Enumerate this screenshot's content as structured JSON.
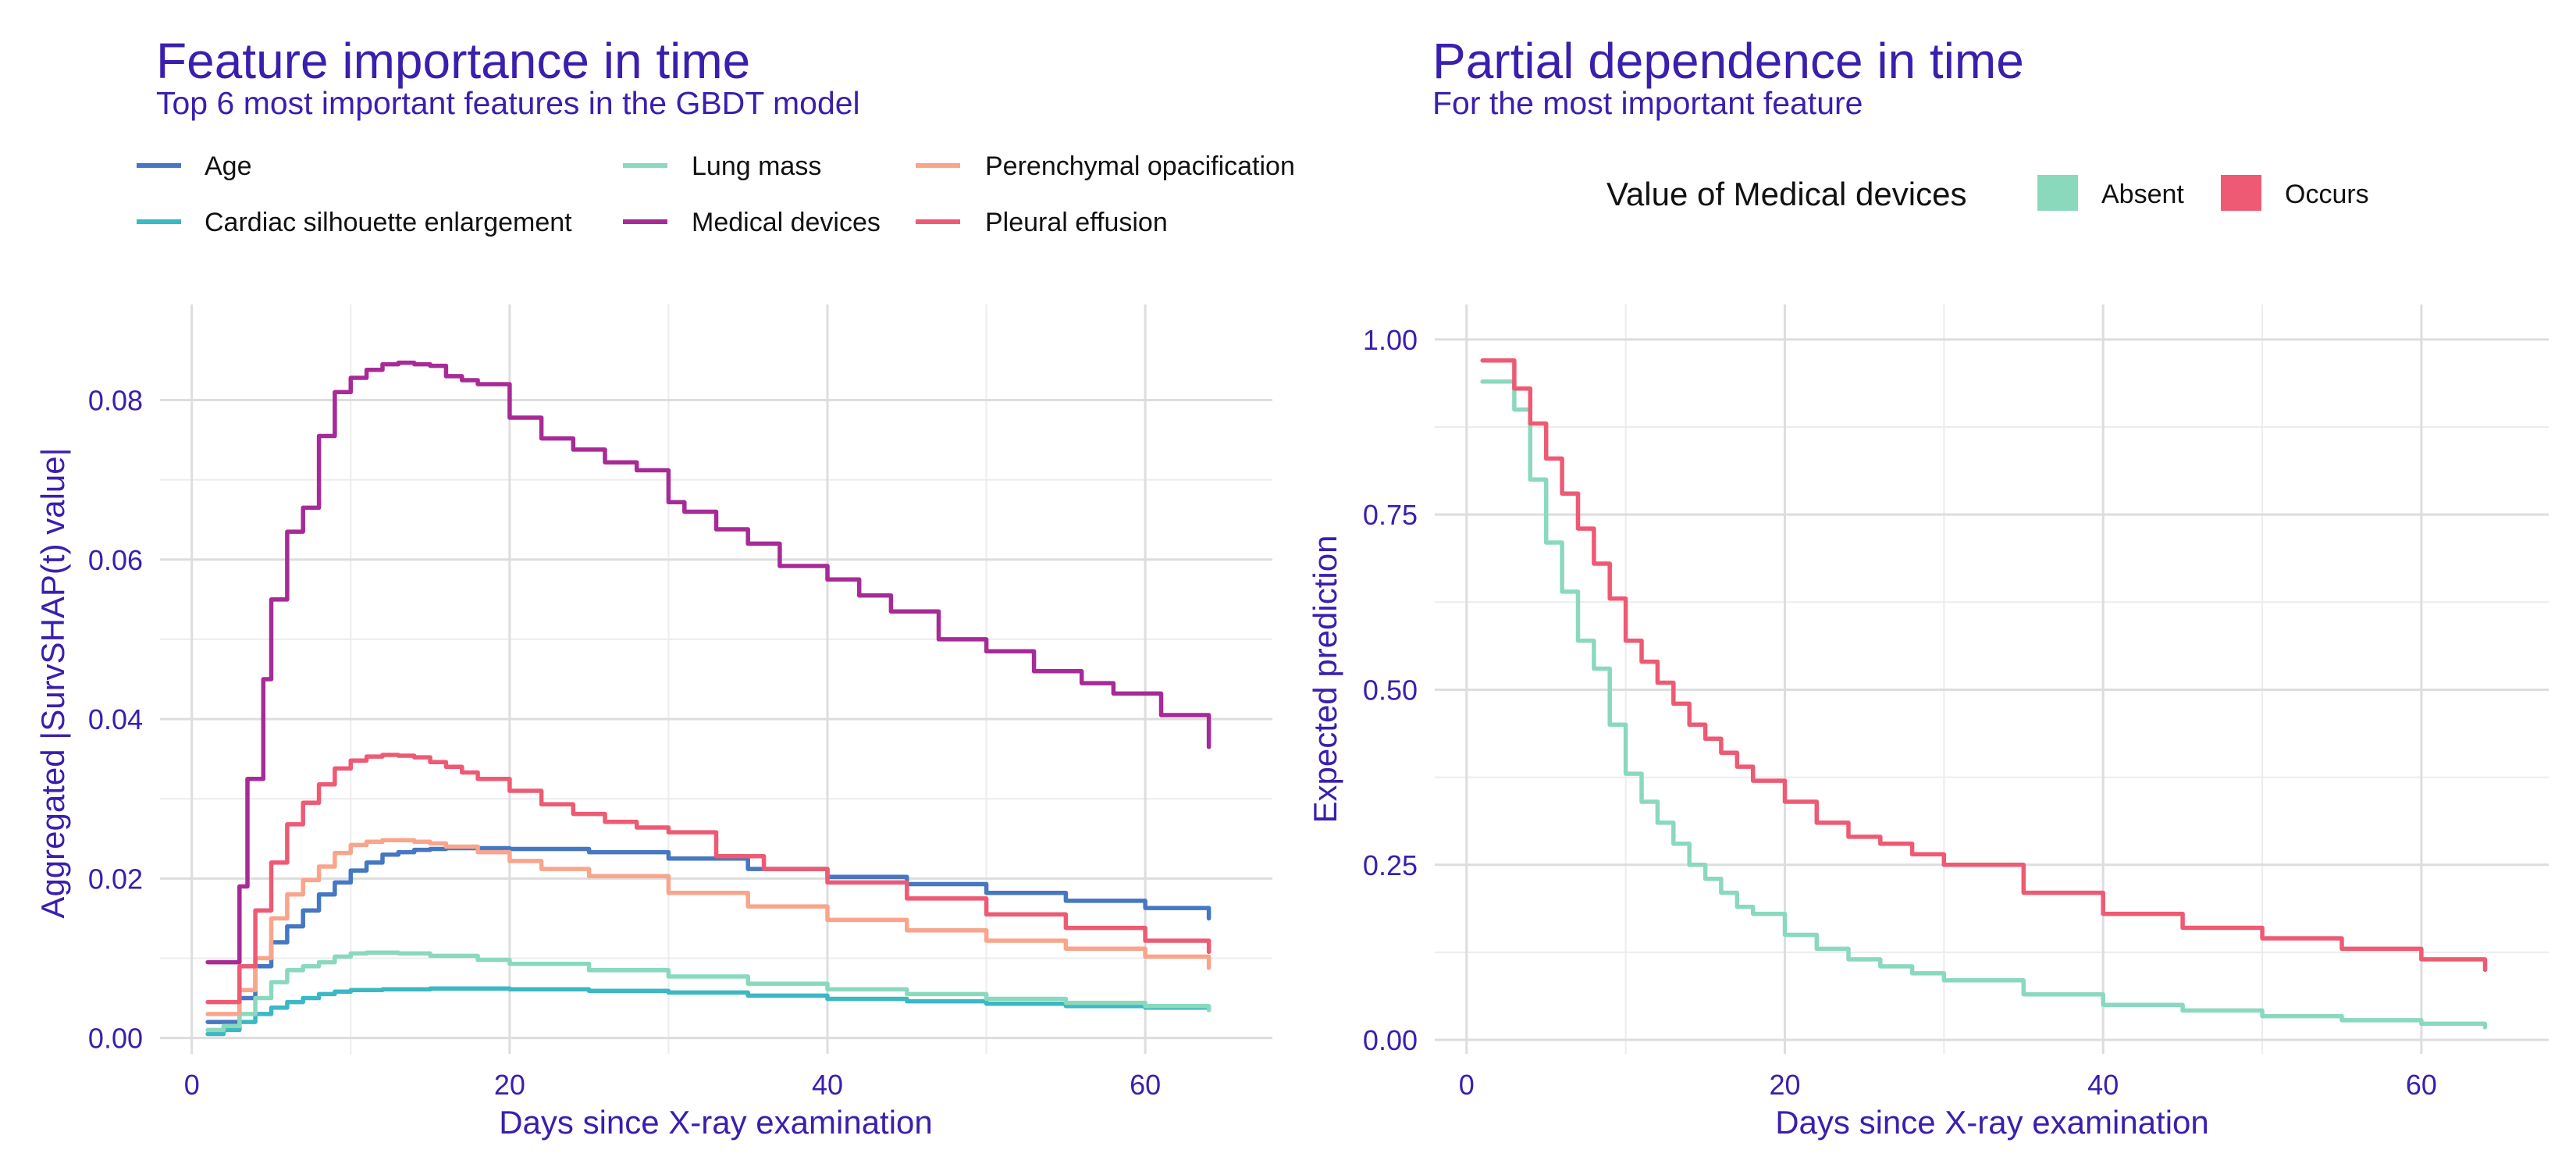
{
  "colors": {
    "text": "#3a1fae",
    "Age": "#4577c2",
    "Cardiac silhouette enlargement": "#3bb8c4",
    "Lung mass": "#8ad9bd",
    "Medical devices": "#a72b96",
    "Perenchymal opacification": "#f9a58c",
    "Pleural effusion": "#ee5a73",
    "Absent": "#8ad9bd",
    "Occurs": "#ee5a73"
  },
  "chart_data": [
    {
      "type": "line",
      "title": "Feature importance in time",
      "subtitle": "Top 6 most important features in the GBDT model",
      "xlabel": "Days since X-ray examination",
      "ylabel": "Aggregated |SurvSHAP(t) value|",
      "xlim": [
        -2,
        68
      ],
      "ylim": [
        -0.002,
        0.092
      ],
      "xticks": [
        0,
        20,
        40,
        60
      ],
      "xtick_labels": [
        "0",
        "20",
        "40",
        "60"
      ],
      "yticks": [
        0.0,
        0.02,
        0.04,
        0.06,
        0.08
      ],
      "ytick_labels": [
        "0.00",
        "0.02",
        "0.04",
        "0.06",
        "0.08"
      ],
      "grid": true,
      "legend_position": "top",
      "series": [
        {
          "name": "Age",
          "color": "#4577c2",
          "step": true,
          "x": [
            1,
            2,
            3,
            4,
            5,
            6,
            7,
            8,
            9,
            10,
            11,
            12,
            13,
            14,
            15,
            16,
            18,
            20,
            25,
            30,
            35,
            40,
            45,
            50,
            55,
            60,
            64
          ],
          "y": [
            0.002,
            0.002,
            0.005,
            0.009,
            0.012,
            0.014,
            0.016,
            0.018,
            0.0195,
            0.021,
            0.022,
            0.023,
            0.0233,
            0.0236,
            0.0237,
            0.0238,
            0.0238,
            0.0237,
            0.0233,
            0.0225,
            0.0212,
            0.0202,
            0.0193,
            0.0182,
            0.0172,
            0.0163,
            0.015
          ]
        },
        {
          "name": "Cardiac silhouette enlargement",
          "color": "#3bb8c4",
          "step": true,
          "x": [
            1,
            2,
            3,
            4,
            5,
            6,
            7,
            8,
            9,
            10,
            12,
            15,
            20,
            25,
            30,
            35,
            40,
            45,
            50,
            55,
            60,
            64
          ],
          "y": [
            0.0005,
            0.001,
            0.002,
            0.003,
            0.0038,
            0.0045,
            0.005,
            0.0055,
            0.0058,
            0.006,
            0.0061,
            0.0062,
            0.0061,
            0.0059,
            0.0057,
            0.0053,
            0.0049,
            0.0046,
            0.0043,
            0.004,
            0.0038,
            0.0035
          ]
        },
        {
          "name": "Lung mass",
          "color": "#8ad9bd",
          "step": true,
          "x": [
            1,
            2,
            3,
            4,
            5,
            6,
            7,
            8,
            9,
            10,
            11,
            12,
            13,
            15,
            18,
            20,
            25,
            30,
            35,
            40,
            45,
            50,
            55,
            60,
            64
          ],
          "y": [
            0.001,
            0.0015,
            0.003,
            0.005,
            0.007,
            0.0085,
            0.009,
            0.0095,
            0.0102,
            0.0106,
            0.0107,
            0.0107,
            0.0106,
            0.0103,
            0.0098,
            0.0093,
            0.0085,
            0.0077,
            0.0068,
            0.0061,
            0.0055,
            0.0049,
            0.0044,
            0.004,
            0.0035
          ]
        },
        {
          "name": "Medical devices",
          "color": "#a72b96",
          "step": true,
          "x": [
            1,
            2,
            3,
            3.5,
            4,
            4.5,
            5,
            6,
            7,
            8,
            9,
            10,
            11,
            12,
            13,
            14,
            15,
            16,
            17,
            18,
            20,
            22,
            24,
            26,
            28,
            30,
            31,
            33,
            35,
            37,
            40,
            42,
            44,
            47,
            50,
            53,
            56,
            58,
            61,
            64
          ],
          "y": [
            0.0095,
            0.0095,
            0.019,
            0.0325,
            0.0325,
            0.045,
            0.055,
            0.0635,
            0.0665,
            0.0755,
            0.081,
            0.0828,
            0.0838,
            0.0845,
            0.0847,
            0.0845,
            0.0843,
            0.083,
            0.0825,
            0.082,
            0.0778,
            0.0752,
            0.0738,
            0.0722,
            0.0712,
            0.0672,
            0.066,
            0.0638,
            0.062,
            0.0592,
            0.0575,
            0.0555,
            0.0535,
            0.05,
            0.0485,
            0.046,
            0.0445,
            0.0432,
            0.0405,
            0.0365
          ]
        },
        {
          "name": "Perenchymal opacification",
          "color": "#f9a58c",
          "step": true,
          "x": [
            1,
            2,
            3,
            4,
            5,
            6,
            7,
            8,
            9,
            10,
            11,
            12,
            13,
            14,
            15,
            16,
            18,
            20,
            22,
            25,
            30,
            35,
            40,
            45,
            50,
            55,
            60,
            64
          ],
          "y": [
            0.003,
            0.003,
            0.006,
            0.01,
            0.015,
            0.018,
            0.0198,
            0.0215,
            0.0232,
            0.0242,
            0.0246,
            0.0248,
            0.0248,
            0.0246,
            0.0244,
            0.024,
            0.0233,
            0.0222,
            0.0212,
            0.0203,
            0.0182,
            0.0165,
            0.0148,
            0.0135,
            0.0122,
            0.0112,
            0.0102,
            0.0088
          ]
        },
        {
          "name": "Pleural effusion",
          "color": "#ee5a73",
          "step": true,
          "x": [
            1,
            2,
            3,
            4,
            5,
            6,
            7,
            8,
            9,
            10,
            11,
            12,
            13,
            14,
            15,
            16,
            17,
            18,
            20,
            22,
            24,
            26,
            28,
            30,
            33,
            36,
            40,
            45,
            50,
            55,
            60,
            64
          ],
          "y": [
            0.0045,
            0.0045,
            0.009,
            0.016,
            0.022,
            0.0268,
            0.0295,
            0.0318,
            0.0338,
            0.0348,
            0.0353,
            0.0355,
            0.0354,
            0.0352,
            0.0346,
            0.034,
            0.0333,
            0.0325,
            0.031,
            0.0293,
            0.0281,
            0.0271,
            0.0264,
            0.0258,
            0.0228,
            0.0212,
            0.0195,
            0.0175,
            0.0155,
            0.0138,
            0.0122,
            0.0108
          ]
        }
      ]
    },
    {
      "type": "line",
      "title": "Partial dependence in time",
      "subtitle": "For the most important feature",
      "legend_title": "Value of Medical devices",
      "xlabel": "Days since X-ray examination",
      "ylabel": "Expected prediction",
      "xlim": [
        -2,
        68
      ],
      "ylim": [
        -0.02,
        1.05
      ],
      "xticks": [
        0,
        20,
        40,
        60
      ],
      "xtick_labels": [
        "0",
        "20",
        "40",
        "60"
      ],
      "yticks": [
        0.0,
        0.25,
        0.5,
        0.75,
        1.0
      ],
      "ytick_labels": [
        "0.00",
        "0.25",
        "0.50",
        "0.75",
        "1.00"
      ],
      "grid": true,
      "legend_position": "top",
      "series": [
        {
          "name": "Absent",
          "color": "#8ad9bd",
          "step": true,
          "x": [
            1,
            2,
            3,
            4,
            5,
            6,
            7,
            8,
            9,
            10,
            11,
            12,
            13,
            14,
            15,
            16,
            17,
            18,
            20,
            22,
            24,
            26,
            28,
            30,
            35,
            40,
            45,
            50,
            55,
            60,
            64
          ],
          "y": [
            0.94,
            0.94,
            0.9,
            0.8,
            0.71,
            0.64,
            0.57,
            0.53,
            0.45,
            0.38,
            0.34,
            0.31,
            0.28,
            0.25,
            0.23,
            0.21,
            0.19,
            0.18,
            0.15,
            0.13,
            0.115,
            0.105,
            0.095,
            0.085,
            0.065,
            0.05,
            0.042,
            0.034,
            0.028,
            0.023,
            0.018
          ]
        },
        {
          "name": "Occurs",
          "color": "#ee5a73",
          "step": true,
          "x": [
            1,
            2,
            3,
            4,
            5,
            6,
            7,
            8,
            9,
            10,
            11,
            12,
            13,
            14,
            15,
            16,
            17,
            18,
            20,
            22,
            24,
            26,
            28,
            30,
            35,
            40,
            45,
            50,
            55,
            60,
            64
          ],
          "y": [
            0.97,
            0.97,
            0.93,
            0.88,
            0.83,
            0.78,
            0.73,
            0.68,
            0.63,
            0.57,
            0.54,
            0.51,
            0.48,
            0.45,
            0.43,
            0.41,
            0.39,
            0.37,
            0.34,
            0.31,
            0.29,
            0.28,
            0.265,
            0.25,
            0.21,
            0.18,
            0.16,
            0.145,
            0.13,
            0.115,
            0.1
          ]
        }
      ]
    }
  ]
}
